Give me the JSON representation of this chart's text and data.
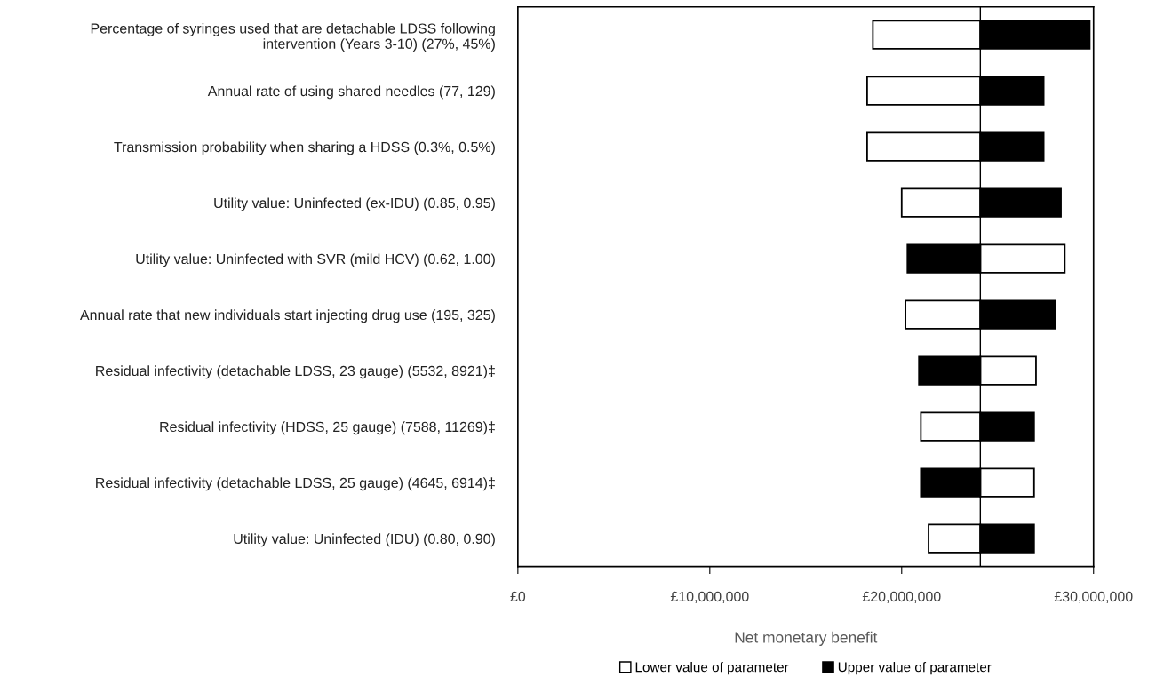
{
  "chart_data": {
    "type": "bar",
    "orientation": "horizontal",
    "xlabel": "Net monetary benefit",
    "categories": [
      "Percentage of syringes used that are detachable LDSS following intervention (Years 3-10) (27%, 45%)",
      "Annual rate of using shared needles (77, 129)",
      "Transmission probability when sharing a HDSS (0.3%, 0.5%)",
      "Utility value: Uninfected (ex-IDU) (0.85, 0.95)",
      "Utility value: Uninfected with SVR (mild HCV) (0.62, 1.00)",
      "Annual rate that new individuals start injecting drug use (195, 325)",
      "Residual infectivity (detachable LDSS, 23 gauge) (5532, 8921)‡",
      "Residual infectivity (HDSS, 25 gauge) (7588, 11269)‡",
      "Residual infectivity (detachable LDSS, 25 gauge) (4645, 6914)‡",
      "Utility value: Uninfected (IDU) (0.80, 0.90)"
    ],
    "series": [
      {
        "name": "Lower value of parameter",
        "color": "#ffffff",
        "base": [
          18500000,
          18200000,
          18200000,
          20000000,
          24100000,
          20200000,
          24100000,
          21000000,
          24100000,
          21400000
        ],
        "values": [
          5600000,
          5900000,
          5900000,
          4100000,
          4400000,
          3900000,
          2900000,
          3100000,
          2800000,
          2700000
        ]
      },
      {
        "name": "Upper value of parameter",
        "color": "#000000",
        "base": [
          24100000,
          24100000,
          24100000,
          24100000,
          20300000,
          24100000,
          20900000,
          24100000,
          21000000,
          24100000
        ],
        "values": [
          5700000,
          3300000,
          3300000,
          4200000,
          3800000,
          3900000,
          3200000,
          2800000,
          3100000,
          2800000
        ]
      }
    ],
    "xlim": [
      0,
      30000000
    ],
    "xticks": [
      {
        "value": 0,
        "label": "£0"
      },
      {
        "value": 10000000,
        "label": "£10,000,000"
      },
      {
        "value": 20000000,
        "label": "£20,000,000"
      },
      {
        "value": 30000000,
        "label": "£30,000,000"
      }
    ],
    "ref_lines": [
      {
        "axis": "x",
        "value": 24100000,
        "color": "#000000"
      }
    ],
    "legend": "bottom",
    "grid": false
  }
}
